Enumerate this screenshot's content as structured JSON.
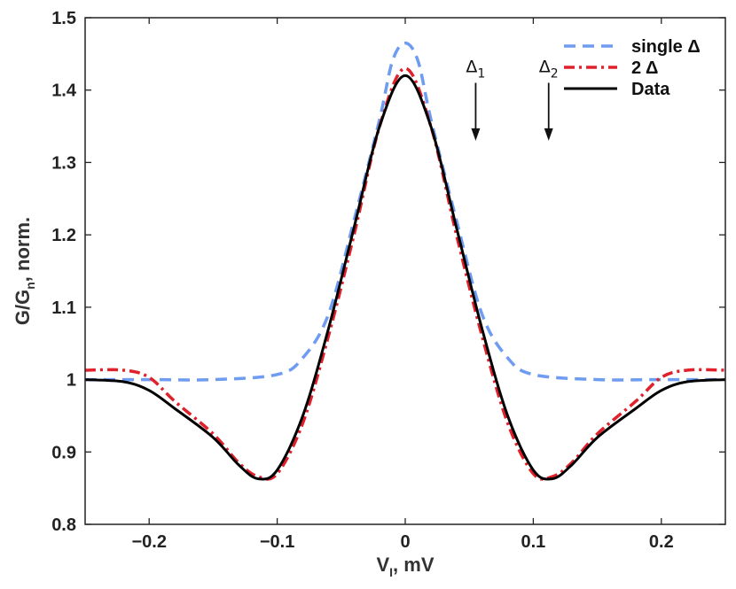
{
  "chart_data": {
    "type": "line",
    "title": "",
    "xlabel": {
      "main": "V",
      "sub": "I",
      "unit": ", mV"
    },
    "ylabel": {
      "main": "G/G",
      "sub": "n",
      "unit": ", norm."
    },
    "xlim": [
      -0.25,
      0.25
    ],
    "ylim": [
      0.8,
      1.5
    ],
    "xticks": [
      -0.2,
      -0.1,
      0,
      0.1,
      0.2
    ],
    "xtick_labels": [
      "−0.2",
      "−0.1",
      "0",
      "0.1",
      "0.2"
    ],
    "yticks": [
      0.8,
      0.9,
      1.0,
      1.1,
      1.2,
      1.3,
      1.4,
      1.5
    ],
    "ytick_labels": [
      "0.8",
      "0.9",
      "1",
      "1.1",
      "1.2",
      "1.3",
      "1.4",
      "1.5"
    ],
    "grid": false,
    "legend_position": "top-right",
    "series": [
      {
        "name": "single Δ",
        "key": "single",
        "color": "#6e9cf0",
        "style": "dashed",
        "x": [
          -0.25,
          -0.2,
          -0.15,
          -0.1,
          -0.08,
          -0.06,
          -0.04,
          -0.02,
          -0.01,
          0,
          0.01,
          0.02,
          0.04,
          0.06,
          0.08,
          0.1,
          0.15,
          0.2,
          0.25
        ],
        "y": [
          1.0,
          1.0,
          1.0,
          1.007,
          1.03,
          1.09,
          1.22,
          1.36,
          1.44,
          1.465,
          1.44,
          1.36,
          1.22,
          1.09,
          1.03,
          1.007,
          1.0,
          1.0,
          1.0
        ]
      },
      {
        "name": "2 Δ",
        "key": "two",
        "color": "#e0202a",
        "style": "dashdot",
        "x": [
          -0.25,
          -0.22,
          -0.2,
          -0.18,
          -0.15,
          -0.13,
          -0.115,
          -0.1,
          -0.08,
          -0.06,
          -0.04,
          -0.02,
          0,
          0.02,
          0.04,
          0.06,
          0.08,
          0.1,
          0.115,
          0.13,
          0.15,
          0.18,
          0.2,
          0.22,
          0.25
        ],
        "y": [
          1.013,
          1.013,
          1.003,
          0.97,
          0.925,
          0.885,
          0.866,
          0.87,
          0.94,
          1.06,
          1.2,
          1.35,
          1.43,
          1.35,
          1.2,
          1.06,
          0.94,
          0.87,
          0.866,
          0.885,
          0.925,
          0.97,
          1.003,
          1.013,
          1.013
        ]
      },
      {
        "name": "Data",
        "key": "data",
        "color": "#000000",
        "style": "solid",
        "x": [
          -0.25,
          -0.22,
          -0.2,
          -0.18,
          -0.15,
          -0.13,
          -0.115,
          -0.1,
          -0.08,
          -0.06,
          -0.04,
          -0.02,
          0,
          0.02,
          0.04,
          0.06,
          0.08,
          0.1,
          0.115,
          0.13,
          0.15,
          0.18,
          0.2,
          0.22,
          0.25
        ],
        "y": [
          1.0,
          0.997,
          0.985,
          0.96,
          0.92,
          0.882,
          0.863,
          0.875,
          0.95,
          1.07,
          1.21,
          1.35,
          1.42,
          1.35,
          1.21,
          1.07,
          0.95,
          0.875,
          0.863,
          0.882,
          0.92,
          0.96,
          0.985,
          0.997,
          1.0
        ]
      }
    ],
    "annotations": [
      {
        "key": "delta1",
        "main": "Δ",
        "sub": "1",
        "x": 0.055,
        "y_top": 1.41,
        "y_bottom": 1.33
      },
      {
        "key": "delta2",
        "main": "Δ",
        "sub": "2",
        "x": 0.112,
        "y_top": 1.41,
        "y_bottom": 1.33
      }
    ]
  }
}
